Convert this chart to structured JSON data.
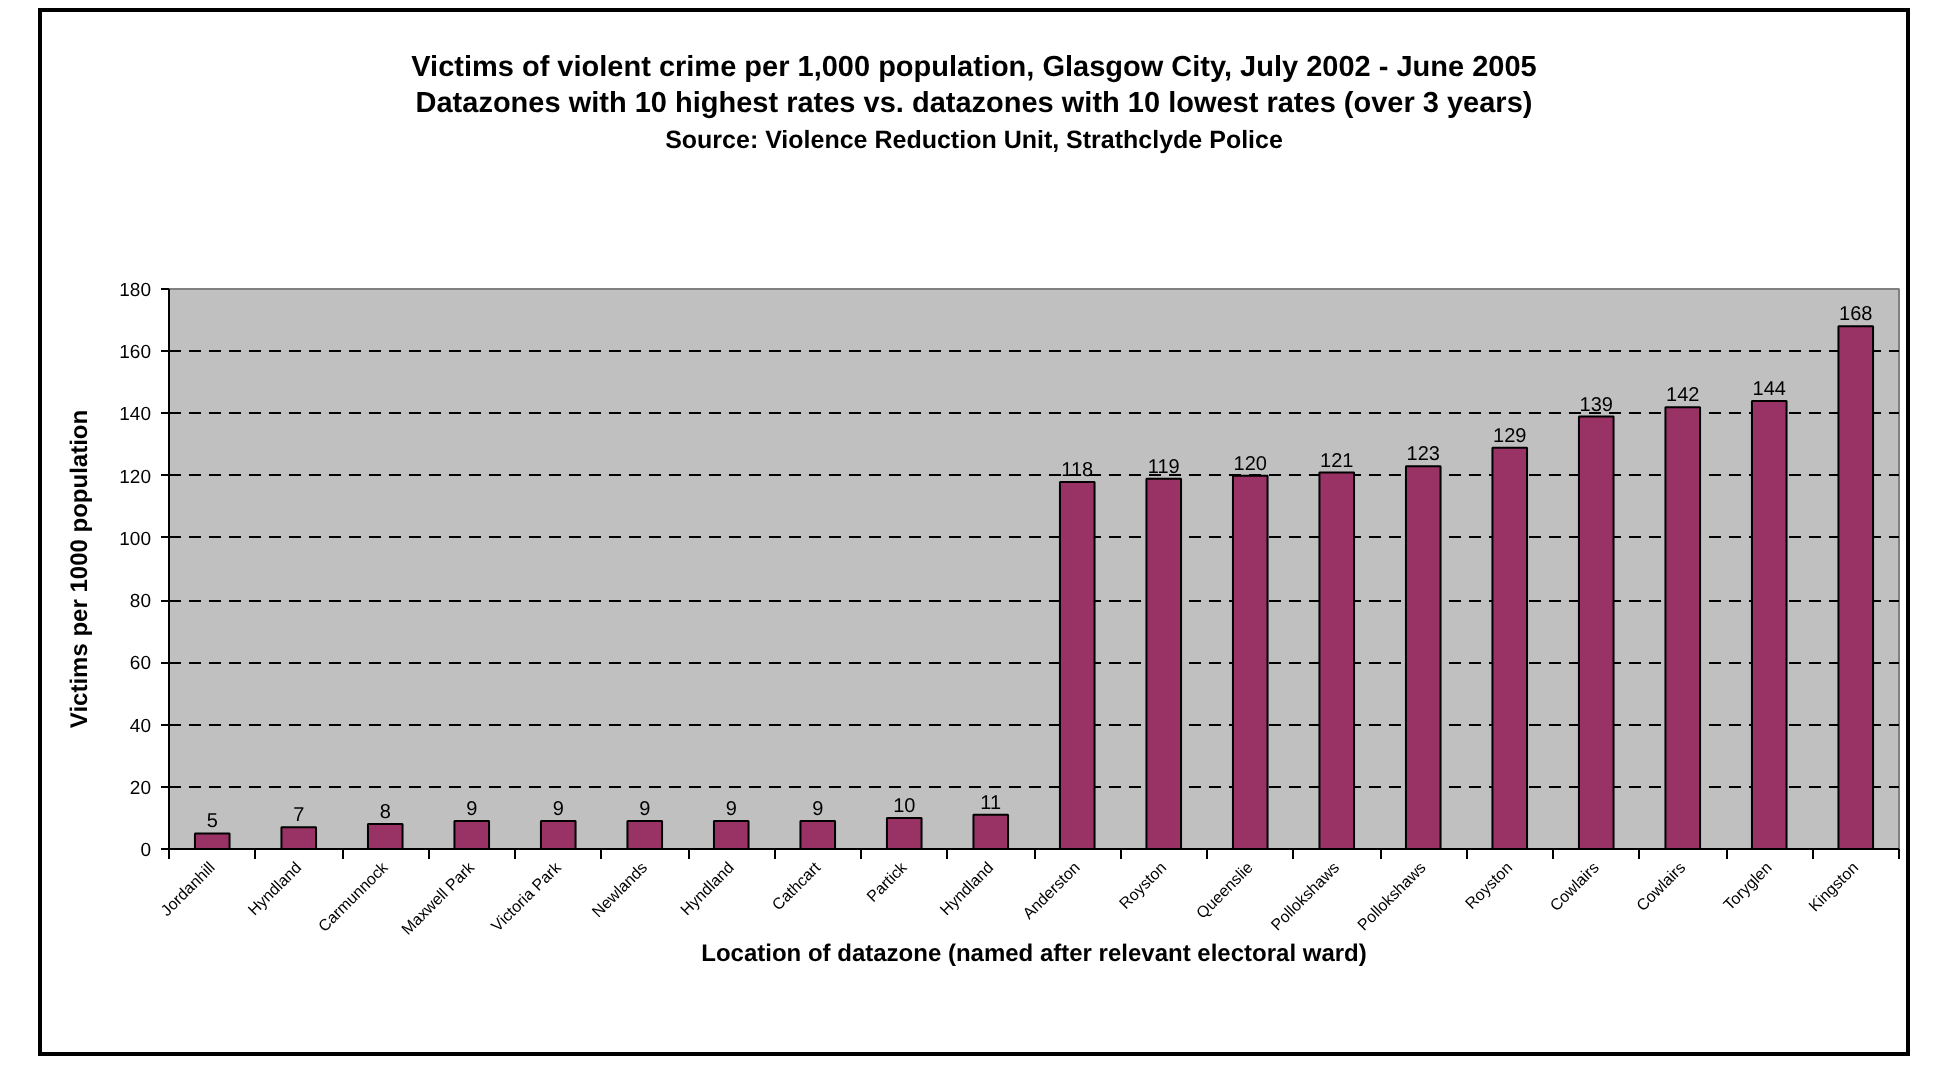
{
  "chart_data": {
    "type": "bar",
    "title": "Victims of violent crime per 1,000 population, Glasgow City, July 2002 - June 2005",
    "subtitle": "Datazones with 10 highest rates vs. datazones with 10 lowest rates (over 3 years)",
    "annotations": [
      "Source: Violence Reduction Unit, Strathclyde Police"
    ],
    "xlabel": "Location of datazone (named after relevant electoral ward)",
    "ylabel": "Victims per 1000 population",
    "categories": [
      "Jordanhill",
      "Hyndland",
      "Carmunnock",
      "Maxwell Park",
      "Victoria Park",
      "Newlands",
      "Hyndland",
      "Cathcart",
      "Partick",
      "Hyndland",
      "Anderston",
      "Royston",
      "Queenslie",
      "Pollokshaws",
      "Pollokshaws",
      "Royston",
      "Cowlairs",
      "Cowlairs",
      "Toryglen",
      "Kingston"
    ],
    "values": [
      5,
      7,
      8,
      9,
      9,
      9,
      9,
      9,
      10,
      11,
      118,
      119,
      120,
      121,
      123,
      129,
      139,
      142,
      144,
      168
    ],
    "color": "#993366",
    "ylim": [
      0,
      180
    ],
    "yticks": [
      0,
      20,
      40,
      60,
      80,
      100,
      120,
      140,
      160,
      180
    ],
    "grid": "y",
    "data_labels": true
  }
}
